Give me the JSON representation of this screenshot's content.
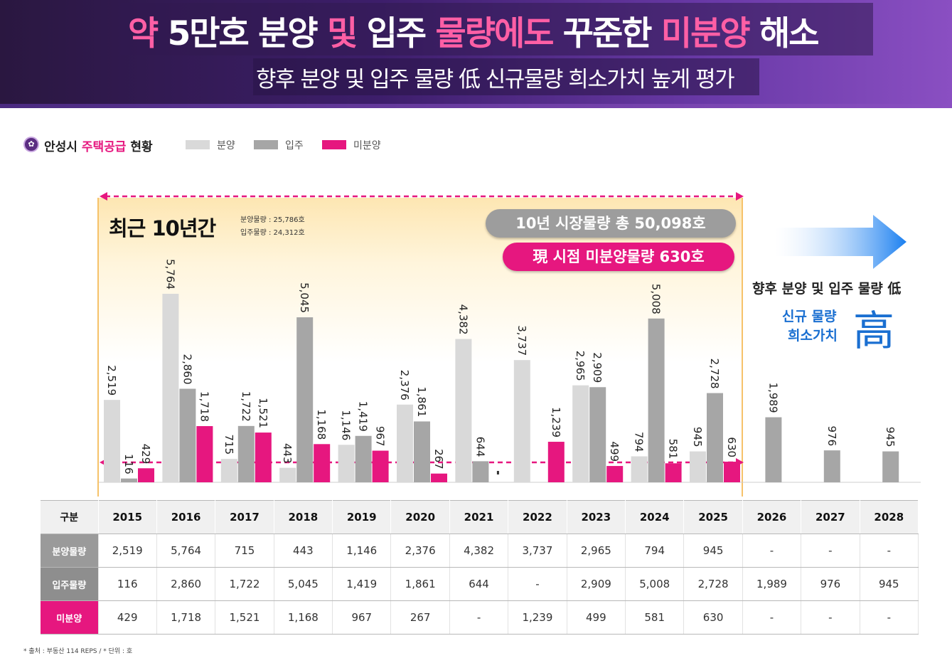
{
  "header": {
    "title_parts": [
      "약 5만호 분양 ",
      "및",
      " 입주 ",
      "물량에도",
      " 꾸준한 ",
      "미분양",
      " 해소"
    ],
    "subtitle": "향후 분양 및 입주 물량 低 신규물량 희소가치 높게 평가"
  },
  "section": {
    "icon": "✿",
    "title_prefix": "안성시 ",
    "title_highlight": "주택공급",
    "title_suffix": " 현황"
  },
  "legend": [
    {
      "label": "분양",
      "color": "#d9d9d9"
    },
    {
      "label": "입주",
      "color": "#a6a6a6"
    },
    {
      "label": "미분양",
      "color": "#e6177f"
    }
  ],
  "callouts": {
    "recent": "최근 10년간",
    "sale_total_note": "분양물량 : 25,786호",
    "move_total_note": "입주물량 : 24,312호",
    "market_total": "10년 시장물량 총 50,098호",
    "unsold_now": "現 시점 미분양물량 630호",
    "future_line1": "향후 분양 및 입주 물량 低",
    "future_line2": "신규 물량",
    "future_line3": "희소가치",
    "future_big": "高"
  },
  "chart_data": {
    "type": "bar",
    "categories": [
      "2015",
      "2016",
      "2017",
      "2018",
      "2019",
      "2020",
      "2021",
      "2022",
      "2023",
      "2024",
      "2025",
      "2026",
      "2027",
      "2028"
    ],
    "series": [
      {
        "name": "분양",
        "color": "#d9d9d9",
        "values": [
          2519,
          5764,
          715,
          443,
          1146,
          2376,
          4382,
          3737,
          2965,
          794,
          945,
          null,
          null,
          null
        ]
      },
      {
        "name": "입주",
        "color": "#a6a6a6",
        "values": [
          116,
          2860,
          1722,
          5045,
          1419,
          1861,
          644,
          null,
          2909,
          5008,
          2728,
          1989,
          976,
          945
        ]
      },
      {
        "name": "미분양",
        "color": "#e6177f",
        "values": [
          429,
          1718,
          1521,
          1168,
          967,
          267,
          null,
          1239,
          499,
          581,
          630,
          null,
          null,
          null
        ]
      }
    ],
    "ylim": [
      0,
      6000
    ],
    "grid": false,
    "legend_position": "top-left"
  },
  "table": {
    "corner": "구분",
    "years": [
      "2015",
      "2016",
      "2017",
      "2018",
      "2019",
      "2020",
      "2021",
      "2022",
      "2023",
      "2024",
      "2025",
      "2026",
      "2027",
      "2028"
    ],
    "rows": [
      {
        "label": "분양물량",
        "cells": [
          "2,519",
          "5,764",
          "715",
          "443",
          "1,146",
          "2,376",
          "4,382",
          "3,737",
          "2,965",
          "794",
          "945",
          "-",
          "-",
          "-"
        ]
      },
      {
        "label": "입주물량",
        "cells": [
          "116",
          "2,860",
          "1,722",
          "5,045",
          "1,419",
          "1,861",
          "644",
          "-",
          "2,909",
          "5,008",
          "2,728",
          "1,989",
          "976",
          "945"
        ]
      },
      {
        "label": "미분양",
        "cells": [
          "429",
          "1,718",
          "1,521",
          "1,168",
          "967",
          "267",
          "-",
          "1,239",
          "499",
          "581",
          "630",
          "-",
          "-",
          "-"
        ]
      }
    ]
  },
  "source": "* 출처 : 부동산 114 REPS / * 단위 : 호"
}
